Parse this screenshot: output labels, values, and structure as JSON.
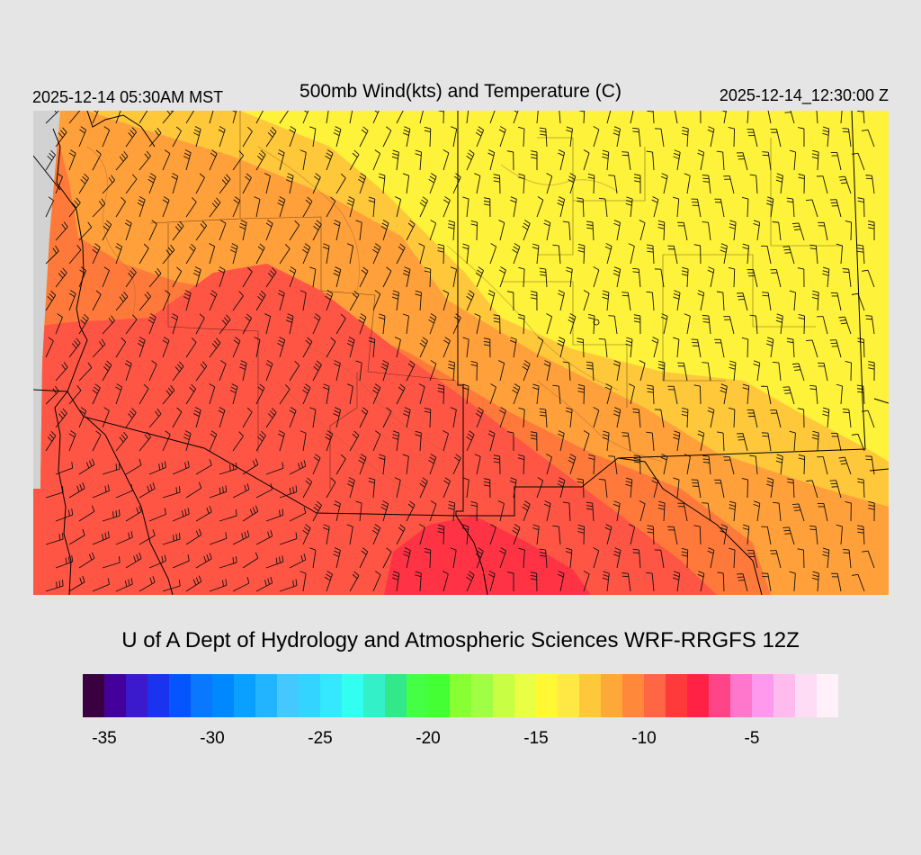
{
  "header": {
    "local_time": "2025-12-14 05:30AM MST",
    "title": "500mb Wind(kts) and Temperature (C)",
    "utc_time": "2025-12-14_12:30:00 Z"
  },
  "footer": {
    "credit": "U of A Dept of Hydrology and Atmospheric Sciences WRF-RRGFS 12Z"
  },
  "map": {
    "field": "temperature",
    "units": "C",
    "temperature_zones": [
      {
        "value": -7.5,
        "color": "#ff3344"
      },
      {
        "value": -9,
        "color": "#ff5544"
      },
      {
        "value": -10.5,
        "color": "#ff7a3a"
      },
      {
        "value": -12,
        "color": "#ffa03a"
      },
      {
        "value": -13.5,
        "color": "#ffc83a"
      },
      {
        "value": -15,
        "color": "#fff23a"
      }
    ],
    "wind_barbs": "shown"
  },
  "colorbar": {
    "min": -36,
    "max": -1,
    "step": 1.25,
    "colors": [
      "#3a0040",
      "#44009a",
      "#3a1acc",
      "#1a33ee",
      "#0555ff",
      "#0a77ff",
      "#0088ff",
      "#0aa0ff",
      "#22b4ff",
      "#44c8ff",
      "#33d4ff",
      "#33e8ff",
      "#33fff0",
      "#33f0c8",
      "#33e888",
      "#44ff44",
      "#44ff33",
      "#88ff33",
      "#a0ff44",
      "#c8ff44",
      "#e8ff44",
      "#fff833",
      "#ffe844",
      "#ffc83a",
      "#ffa83a",
      "#ff883a",
      "#ff6644",
      "#ff3a3a",
      "#ff2244",
      "#ff4488",
      "#ff77cc",
      "#ff99ee",
      "#ffbbee",
      "#ffdcf6",
      "#fff0fa"
    ],
    "tick_labels": [
      "-35",
      "-30",
      "-25",
      "-20",
      "-15",
      "-10",
      "-5"
    ],
    "tick_values": [
      -35,
      -30,
      -25,
      -20,
      -15,
      -10,
      -5
    ]
  }
}
